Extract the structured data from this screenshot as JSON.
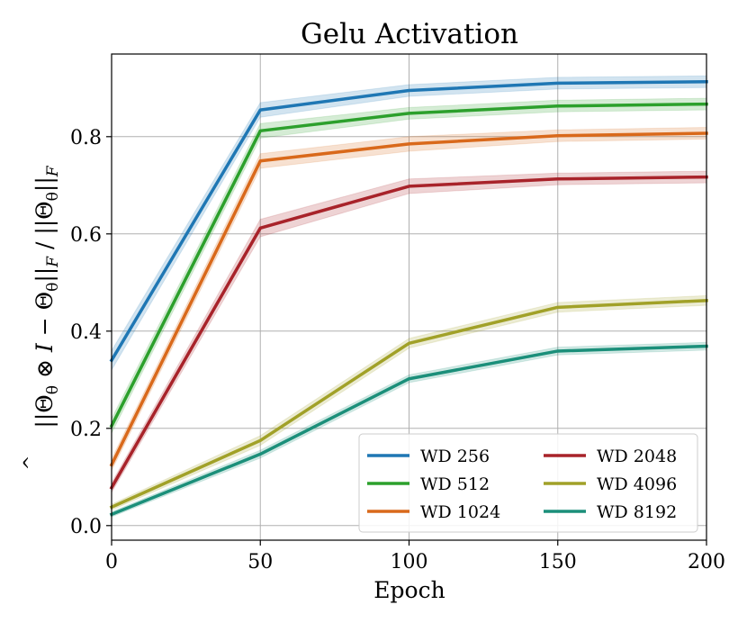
{
  "chart_data": {
    "type": "line",
    "title": "Gelu Activation",
    "xlabel": "Epoch",
    "ylabel": "||Θ̂_θ ⊗ I − Θ_θ||_F / ||Θ_θ||_F",
    "xlim": [
      0,
      200
    ],
    "ylim": [
      -0.03,
      0.97
    ],
    "xticks": [
      0,
      50,
      100,
      150,
      200
    ],
    "yticks": [
      0.0,
      0.2,
      0.4,
      0.6,
      0.8
    ],
    "xtick_labels": [
      "0",
      "50",
      "100",
      "150",
      "200"
    ],
    "ytick_labels": [
      "0.0",
      "0.2",
      "0.4",
      "0.6",
      "0.8"
    ],
    "grid": true,
    "legend_position": "lower-right",
    "legend_columns": 2,
    "x": [
      0,
      50,
      100,
      150,
      200
    ],
    "series": [
      {
        "name": "WD 256",
        "color": "#1f77b4",
        "values": [
          0.34,
          0.855,
          0.895,
          0.91,
          0.913
        ],
        "band": [
          0.02,
          0.015,
          0.012,
          0.012,
          0.012
        ]
      },
      {
        "name": "WD 512",
        "color": "#2ca02c",
        "values": [
          0.205,
          0.812,
          0.848,
          0.863,
          0.867
        ],
        "band": [
          0.015,
          0.015,
          0.012,
          0.012,
          0.012
        ]
      },
      {
        "name": "WD 1024",
        "color": "#d9691b",
        "values": [
          0.125,
          0.75,
          0.785,
          0.802,
          0.807
        ],
        "band": [
          0.012,
          0.015,
          0.015,
          0.012,
          0.012
        ]
      },
      {
        "name": "WD 2048",
        "color": "#a8232a",
        "values": [
          0.078,
          0.612,
          0.698,
          0.713,
          0.717
        ],
        "band": [
          0.01,
          0.018,
          0.015,
          0.012,
          0.012
        ]
      },
      {
        "name": "WD 4096",
        "color": "#a1a128",
        "values": [
          0.038,
          0.175,
          0.375,
          0.449,
          0.463
        ],
        "band": [
          0.006,
          0.01,
          0.01,
          0.01,
          0.01
        ]
      },
      {
        "name": "WD 8192",
        "color": "#1b8f7a",
        "values": [
          0.023,
          0.147,
          0.302,
          0.359,
          0.369
        ],
        "band": [
          0.005,
          0.008,
          0.008,
          0.008,
          0.008
        ]
      }
    ]
  }
}
